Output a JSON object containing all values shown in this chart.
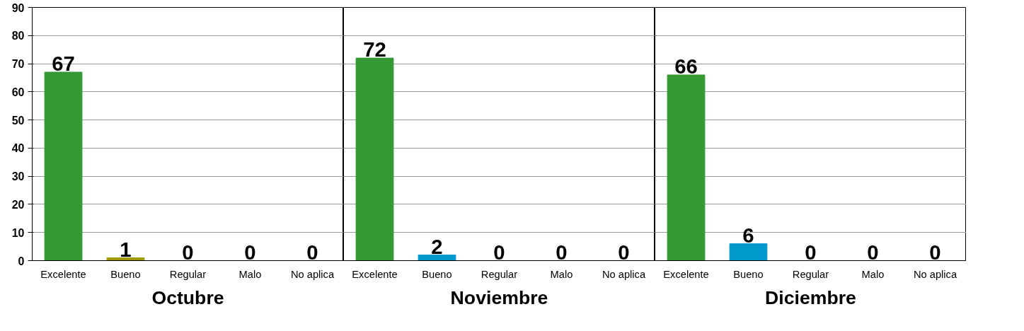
{
  "chart_data": [
    {
      "type": "bar",
      "title": "Octubre",
      "categories": [
        "Excelente",
        "Bueno",
        "Regular",
        "Malo",
        "No aplica"
      ],
      "values": [
        67,
        1,
        0,
        0,
        0
      ],
      "colors": [
        "#339933",
        "#a09a00",
        "#0099cc",
        "#0099cc",
        "#0099cc"
      ],
      "data_labels": true,
      "ylim": [
        0,
        90
      ],
      "yticks": [
        0,
        10,
        20,
        30,
        40,
        50,
        60,
        70,
        80,
        90
      ],
      "grid": "y"
    },
    {
      "type": "bar",
      "title": "Noviembre",
      "categories": [
        "Excelente",
        "Bueno",
        "Regular",
        "Malo",
        "No aplica"
      ],
      "values": [
        72,
        2,
        0,
        0,
        0
      ],
      "colors": [
        "#339933",
        "#0099cc",
        "#0099cc",
        "#0099cc",
        "#0099cc"
      ],
      "data_labels": true,
      "ylim": [
        0,
        90
      ],
      "yticks": [
        0,
        10,
        20,
        30,
        40,
        50,
        60,
        70,
        80,
        90
      ],
      "grid": "y",
      "tick_labels": "x"
    },
    {
      "type": "bar",
      "title": "Diciembre",
      "categories": [
        "Excelente",
        "Bueno",
        "Regular",
        "Malo",
        "No aplica"
      ],
      "values": [
        66,
        6,
        0,
        0,
        0
      ],
      "colors": [
        "#339933",
        "#0099cc",
        "#0099cc",
        "#0099cc",
        "#0099cc"
      ],
      "data_labels": true,
      "ylim": [
        0,
        90
      ],
      "yticks": [
        0,
        10,
        20,
        30,
        40,
        50,
        60,
        70,
        80,
        90
      ],
      "grid": "y",
      "tick_labels": "x"
    }
  ]
}
